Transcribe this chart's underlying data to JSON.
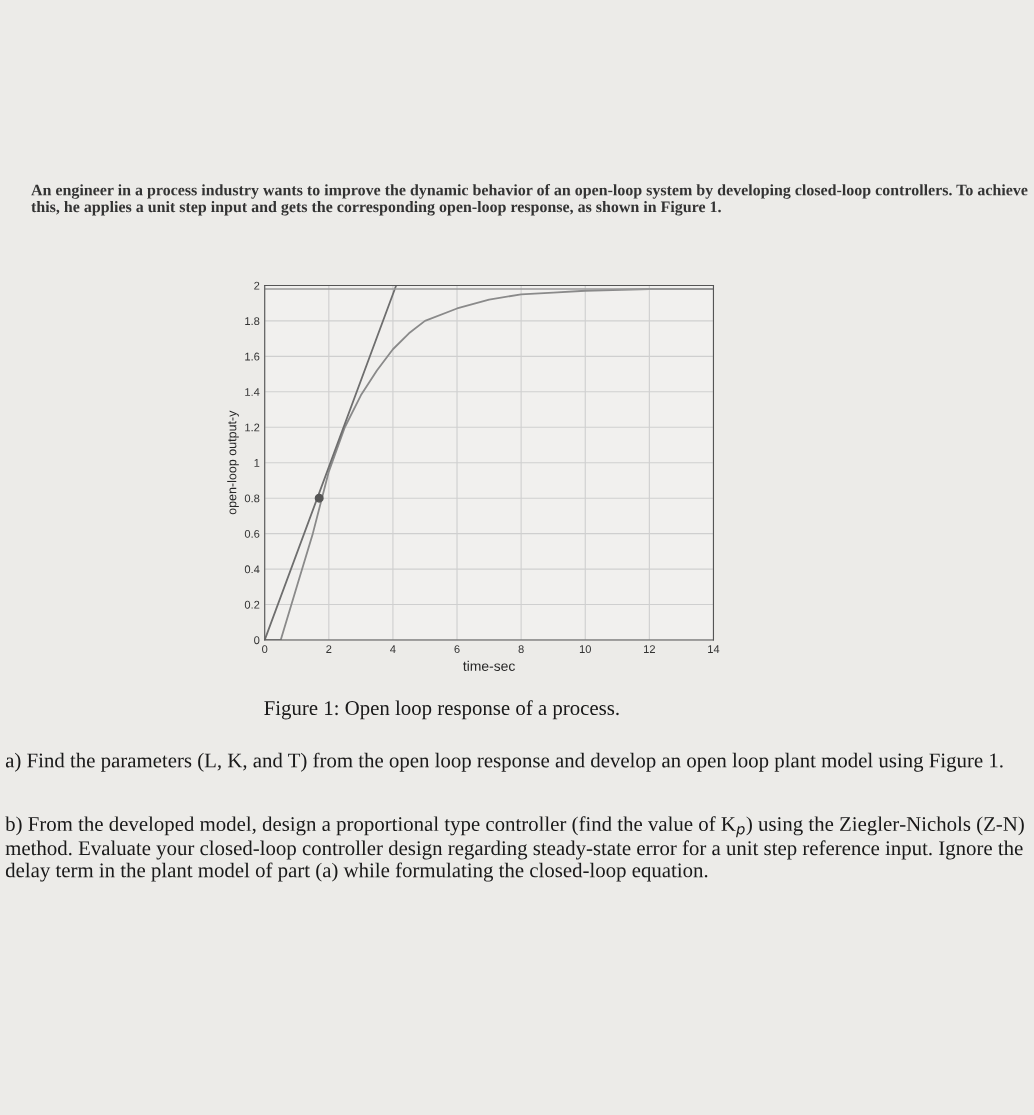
{
  "chart_data": {
    "type": "line",
    "title": "An engineer in a process industry wants to improve the dynamic behavior of an open-loop system by developing closed-loop controllers. To achieve this, he applies a unit step input and gets the corresponding open-loop response, as shown in Figure 1.",
    "xlabel": "time-sec",
    "ylabel": "open-loop output-y",
    "series": [
      {
        "color": "#8a8a8a",
        "x": [
          0,
          0.5,
          1,
          1.5,
          2,
          2.5,
          3,
          3.5,
          4,
          4.5,
          5,
          6,
          7,
          8,
          9,
          10,
          12,
          14
        ],
        "values": [
          0,
          0,
          0.3,
          0.6,
          0.95,
          1.2,
          1.38,
          1.52,
          1.64,
          1.73,
          1.8,
          1.87,
          1.92,
          1.95,
          1.96,
          1.97,
          1.98,
          1.98
        ]
      },
      {
        "color": "#6e6e6e",
        "x": [
          0,
          4.1
        ],
        "values": [
          0,
          2
        ]
      },
      {
        "type": "scatter",
        "color": "#555555",
        "x": [
          1.7
        ],
        "values": [
          0.8
        ]
      }
    ],
    "ref_lines": [
      {
        "axis": "y",
        "value": 1.98,
        "color": "#9a9a9a"
      }
    ],
    "xlim": [
      0,
      14
    ],
    "ylim": [
      0,
      2
    ],
    "xticks": [
      0,
      2,
      4,
      6,
      8,
      10,
      12,
      14
    ],
    "yticks": [
      0,
      0.2,
      0.4,
      0.6,
      0.8,
      1,
      1.2,
      1.4,
      1.6,
      1.8,
      2
    ],
    "grid": true,
    "annotations": [
      "Figure 1: Open loop response of a process.",
      "a) Find the parameters (L, K, and T) from the open loop response and develop an open loop plant model using Figure 1.",
      "b) From the developed model, design a proportional type controller (find the value of K$_{p}$) using the Ziegler-Nichols (Z-N) method. Evaluate your closed-loop controller design regarding steady-state error for a unit step reference input. Ignore the delay term in the plant model of part (a) while formulating the closed-loop equation."
    ]
  }
}
